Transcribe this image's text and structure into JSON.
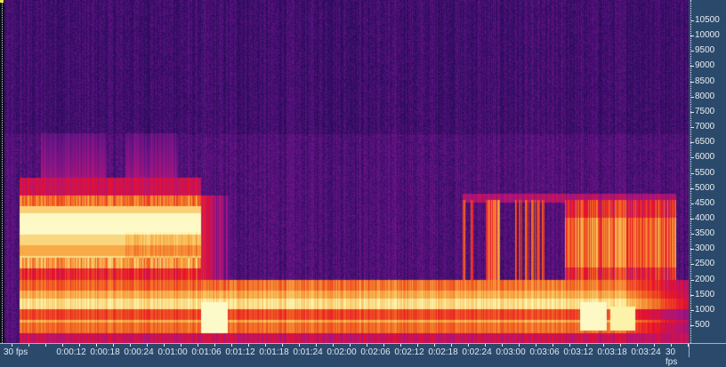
{
  "view": "spectrogram",
  "colors": {
    "ruler_bg": "#2b4a6b",
    "ruler_text": "#dfe8f2",
    "colormap": [
      "#0e0a3a",
      "#2a0c5e",
      "#6a1488",
      "#b0147a",
      "#e8122a",
      "#f06020",
      "#f8b048",
      "#fcf2a8",
      "#fefed8"
    ]
  },
  "frequency_axis": {
    "labels": [
      "10500",
      "10000",
      "9500",
      "9000",
      "8500",
      "8000",
      "7500",
      "7000",
      "6500",
      "6000",
      "5500",
      "5000",
      "4500",
      "4000",
      "3500",
      "3000",
      "2500",
      "2000",
      "1500",
      "1000",
      "500"
    ]
  },
  "time_axis": {
    "fps_left": "30 fps",
    "fps_right": "30 fps",
    "labels": [
      "0:00:12",
      "0:00:18",
      "0:00:24",
      "0:01:00",
      "0:01:06",
      "0:01:12",
      "0:01:18",
      "0:01:24",
      "0:02:00",
      "0:02:06",
      "0:02:12",
      "0:02:18",
      "0:02:24",
      "0:03:00",
      "0:03:06",
      "0:03:12",
      "0:03:18",
      "0:03:24"
    ]
  }
}
